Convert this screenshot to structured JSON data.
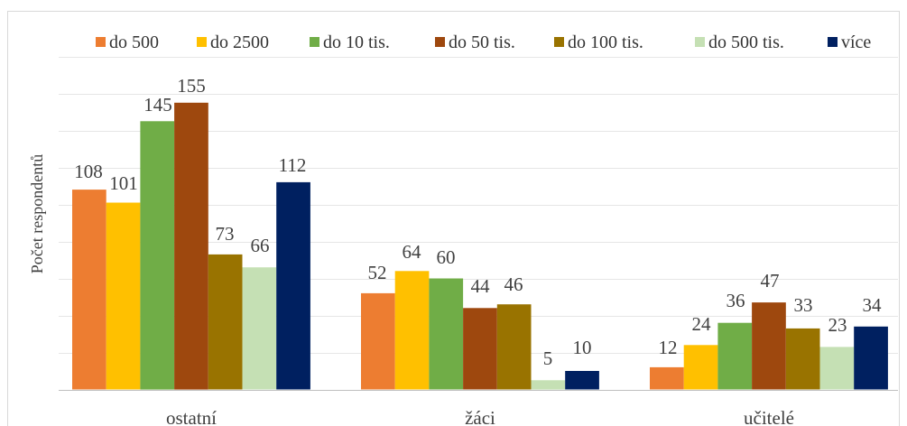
{
  "chart_data": {
    "type": "bar",
    "title": "",
    "xlabel": "",
    "ylabel": "Počet respondentů",
    "ylim": [
      0,
      180
    ],
    "grid_step": 20,
    "grid": true,
    "legend_position": "top",
    "categories": [
      "ostatní",
      "žáci",
      "učitelé"
    ],
    "series": [
      {
        "name": "do 500",
        "color": "#ed7d31",
        "values": [
          108,
          52,
          12
        ]
      },
      {
        "name": "do 2500",
        "color": "#ffc000",
        "values": [
          101,
          64,
          24
        ]
      },
      {
        "name": "do 10 tis.",
        "color": "#70ad47",
        "values": [
          145,
          60,
          36
        ]
      },
      {
        "name": "do 50 tis.",
        "color": "#9e480e",
        "values": [
          155,
          44,
          47
        ]
      },
      {
        "name": "do 100 tis.",
        "color": "#997300",
        "values": [
          73,
          46,
          33
        ]
      },
      {
        "name": "do 500 tis.",
        "color": "#c5e0b4",
        "values": [
          66,
          5,
          23
        ]
      },
      {
        "name": "více",
        "color": "#002060",
        "values": [
          112,
          10,
          34
        ]
      }
    ]
  }
}
